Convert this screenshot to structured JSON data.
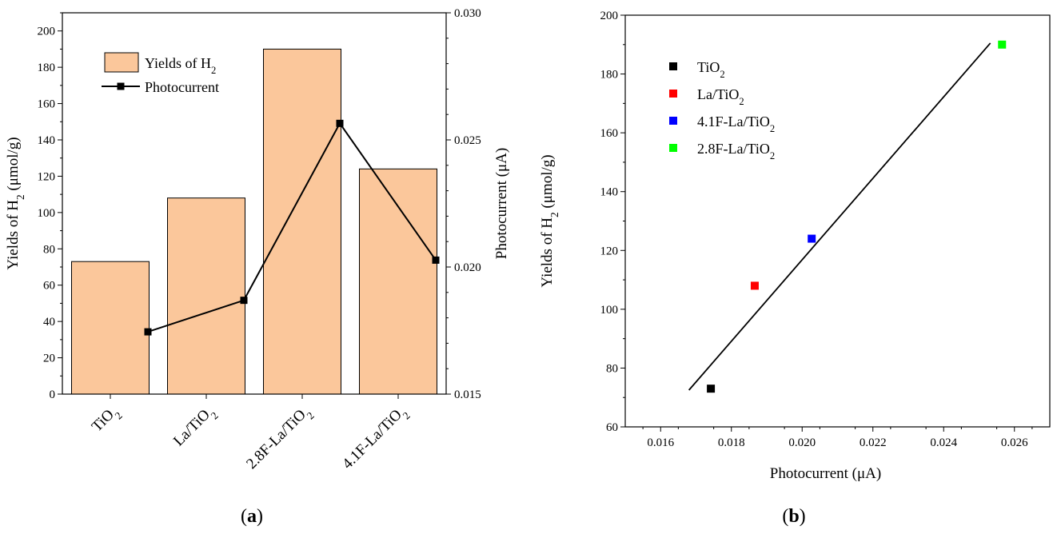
{
  "chart_data": [
    {
      "panel": "(a)",
      "type": "bar",
      "categories": [
        "TiO2",
        "La/TiO2",
        "2.8F-La/TiO2",
        "4.1F-La/TiO2"
      ],
      "category_labels": [
        {
          "main": "TiO",
          "sub": "2",
          "rest": ""
        },
        {
          "main": "La/TiO",
          "sub": "2",
          "rest": ""
        },
        {
          "main": "2.8F-La/TiO",
          "sub": "2",
          "rest": ""
        },
        {
          "main": "4.1F-La/TiO",
          "sub": "2",
          "rest": ""
        }
      ],
      "series": [
        {
          "name": "Yields of H2",
          "type": "bar",
          "axis": "left",
          "color": "#fbc79b",
          "values": [
            73,
            108,
            190,
            124
          ]
        },
        {
          "name": "Photocurrent",
          "type": "line",
          "axis": "right",
          "color": "#000000",
          "values": [
            0.01745,
            0.01869,
            0.02565,
            0.02027
          ]
        }
      ],
      "legend": {
        "position": "top-left",
        "items": [
          {
            "main": "Yields of H",
            "sub": "2",
            "rest": ""
          },
          {
            "main": "Photocurrent",
            "sub": "",
            "rest": ""
          }
        ]
      },
      "ylabel": {
        "main": "Yields of H",
        "sub": "2",
        "rest": " (μmol/g)"
      },
      "y2label": "Photocurrent (μA)",
      "ylim": [
        0,
        210
      ],
      "yticks": [
        "0",
        "20",
        "40",
        "60",
        "80",
        "100",
        "120",
        "140",
        "160",
        "180",
        "200"
      ],
      "y2lim": [
        0.015,
        0.03
      ],
      "y2ticks": [
        "0.015",
        "0.020",
        "0.025",
        "0.030"
      ],
      "grid": false
    },
    {
      "panel": "(b)",
      "type": "scatter",
      "series": [
        {
          "name": "TiO2",
          "label": {
            "main": "TiO",
            "sub": "2",
            "rest": ""
          },
          "color": "#000000",
          "x": 0.01742,
          "y": 73
        },
        {
          "name": "La/TiO2",
          "label": {
            "main": "La/TiO",
            "sub": "2",
            "rest": ""
          },
          "color": "#ff0000",
          "x": 0.01866,
          "y": 108
        },
        {
          "name": "4.1F-La/TiO2",
          "label": {
            "main": "4.1F-La/TiO",
            "sub": "2",
            "rest": ""
          },
          "color": "#0000ff",
          "x": 0.02027,
          "y": 124
        },
        {
          "name": "2.8F-La/TiO2",
          "label": {
            "main": "2.8F-La/TiO",
            "sub": "2",
            "rest": ""
          },
          "color": "#00ff00",
          "x": 0.02565,
          "y": 190
        }
      ],
      "fit_line": {
        "x": [
          0.0168,
          0.02532
        ],
        "y": [
          72.5,
          190.5
        ],
        "color": "#000000"
      },
      "legend": {
        "position": "top-left"
      },
      "xlabel": "Photocurrent (μA)",
      "ylabel": {
        "main": "Yields of H",
        "sub": "2",
        "rest": " (μmol/g)"
      },
      "xlim": [
        0.015,
        0.027
      ],
      "xticks": [
        "0.016",
        "0.018",
        "0.020",
        "0.022",
        "0.024",
        "0.026"
      ],
      "ylim": [
        60,
        200
      ],
      "yticks": [
        "60",
        "80",
        "100",
        "120",
        "140",
        "160",
        "180",
        "200"
      ],
      "grid": false
    }
  ]
}
